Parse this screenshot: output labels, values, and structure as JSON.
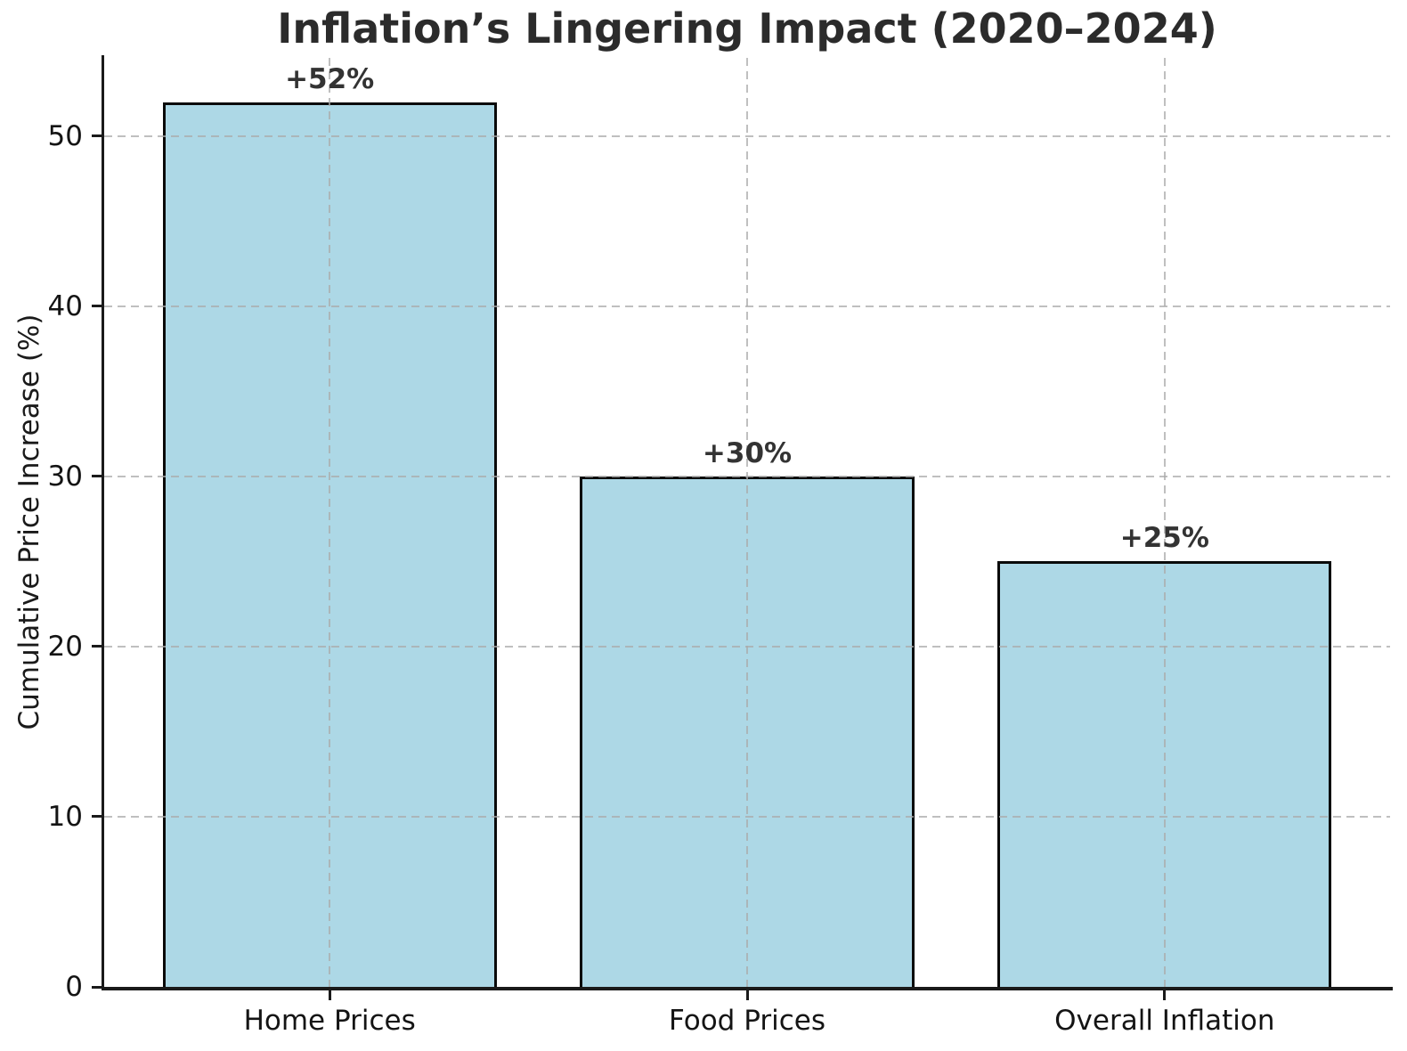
{
  "chart_data": {
    "type": "bar",
    "title": "Inflation’s Lingering Impact (2020–2024)",
    "xlabel": "",
    "ylabel": "Cumulative Price Increase (%)",
    "categories": [
      "Home Prices",
      "Food Prices",
      "Overall Inflation"
    ],
    "values": [
      52,
      30,
      25
    ],
    "bar_labels": [
      "+52%",
      "+30%",
      "+25%"
    ],
    "yticks": [
      0,
      10,
      20,
      30,
      40,
      50
    ],
    "ylim": [
      0,
      54.6
    ],
    "grid": "dashed both-axes drawn over bars",
    "legend_position": "none",
    "colors": {
      "bar_fill": "#ADD8E6",
      "bar_edge": "#0a0a0a",
      "grid": "#aaaaaa",
      "title_text": "#2b2b2b",
      "tick_text": "#141414",
      "bar_label_text": "#333333"
    }
  }
}
